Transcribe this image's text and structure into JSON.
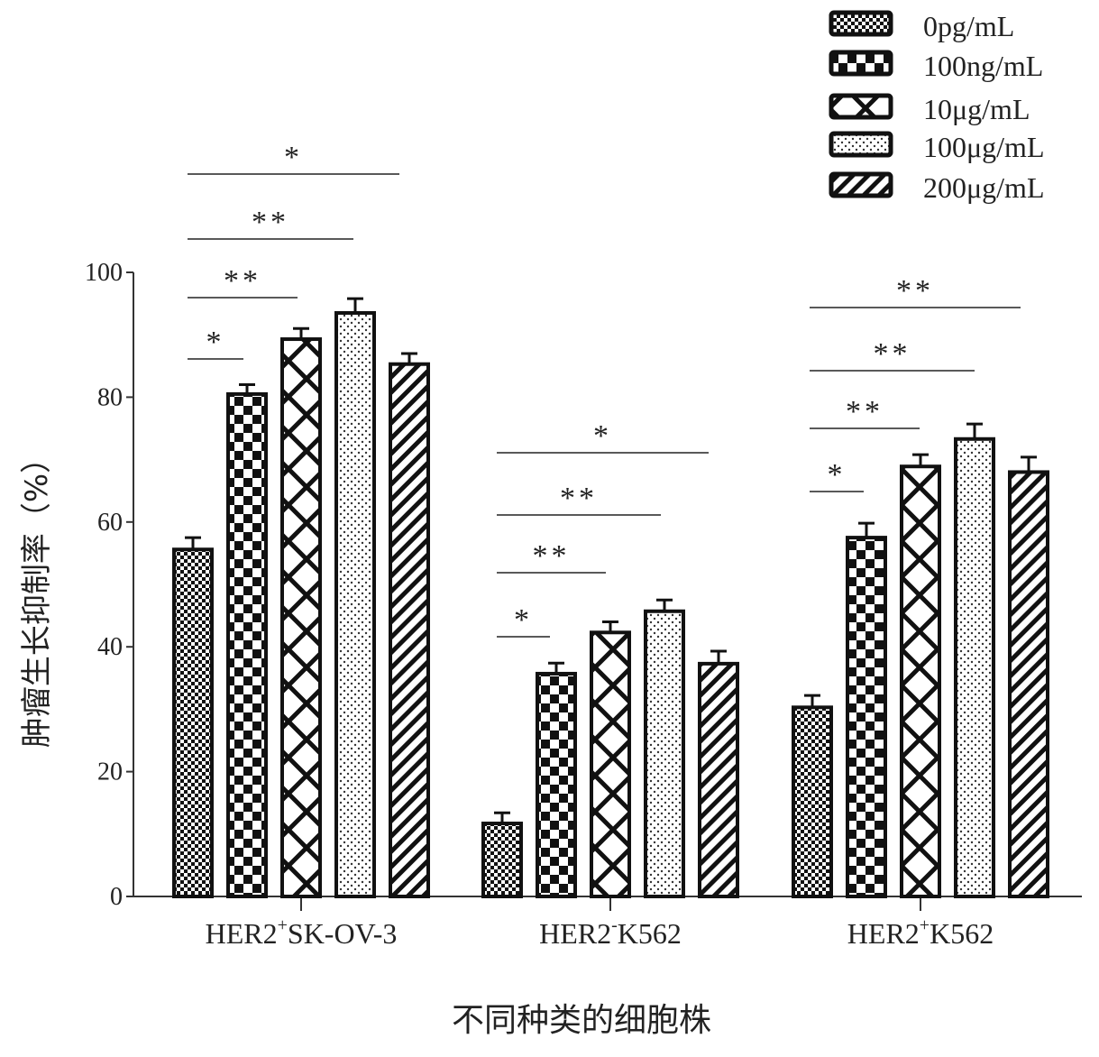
{
  "chart_data": {
    "type": "bar",
    "ylabel": "肿瘤生长抑制率（%）",
    "xlabel": "不同种类的细胞株",
    "ylim": [
      0,
      100
    ],
    "yticks": [
      "0",
      "20",
      "40",
      "60",
      "80",
      "100"
    ],
    "categories": [
      {
        "base": "HER2",
        "sup": "+",
        "rest": "SK-OV-3"
      },
      {
        "base": "HER2",
        "sup": "-",
        "rest": "K562"
      },
      {
        "base": "HER2",
        "sup": "+",
        "rest": "K562"
      }
    ],
    "legend_position": "top-right",
    "series": [
      {
        "name": "0pg/mL",
        "pattern": "fine-checker",
        "values": [
          55.6,
          11.7,
          30.3
        ],
        "errors": [
          1.9,
          1.7,
          1.9
        ]
      },
      {
        "name": "100ng/mL",
        "pattern": "large-checker",
        "values": [
          80.5,
          35.7,
          57.5
        ],
        "errors": [
          1.5,
          1.7,
          2.3
        ]
      },
      {
        "name": "10μg/mL",
        "pattern": "cross-hatch",
        "values": [
          89.3,
          42.3,
          68.9
        ],
        "errors": [
          1.7,
          1.7,
          1.9
        ]
      },
      {
        "name": "100μg/mL",
        "pattern": "dots",
        "values": [
          93.5,
          45.7,
          73.3
        ],
        "errors": [
          2.3,
          1.8,
          2.4
        ]
      },
      {
        "name": "200μg/mL",
        "pattern": "diagonal",
        "values": [
          85.3,
          37.3,
          68.0
        ],
        "errors": [
          1.7,
          2.0,
          2.4
        ]
      }
    ],
    "significance": [
      [
        {
          "to": 1,
          "label": "*"
        },
        {
          "to": 2,
          "label": "**"
        },
        {
          "to": 3,
          "label": "**"
        },
        {
          "to": 4,
          "label": "*"
        }
      ],
      [
        {
          "to": 1,
          "label": "*"
        },
        {
          "to": 2,
          "label": "**"
        },
        {
          "to": 3,
          "label": "**"
        },
        {
          "to": 4,
          "label": "*"
        }
      ],
      [
        {
          "to": 1,
          "label": "*"
        },
        {
          "to": 2,
          "label": "**"
        },
        {
          "to": 3,
          "label": "**"
        },
        {
          "to": 4,
          "label": "**"
        }
      ]
    ],
    "grid": false
  }
}
